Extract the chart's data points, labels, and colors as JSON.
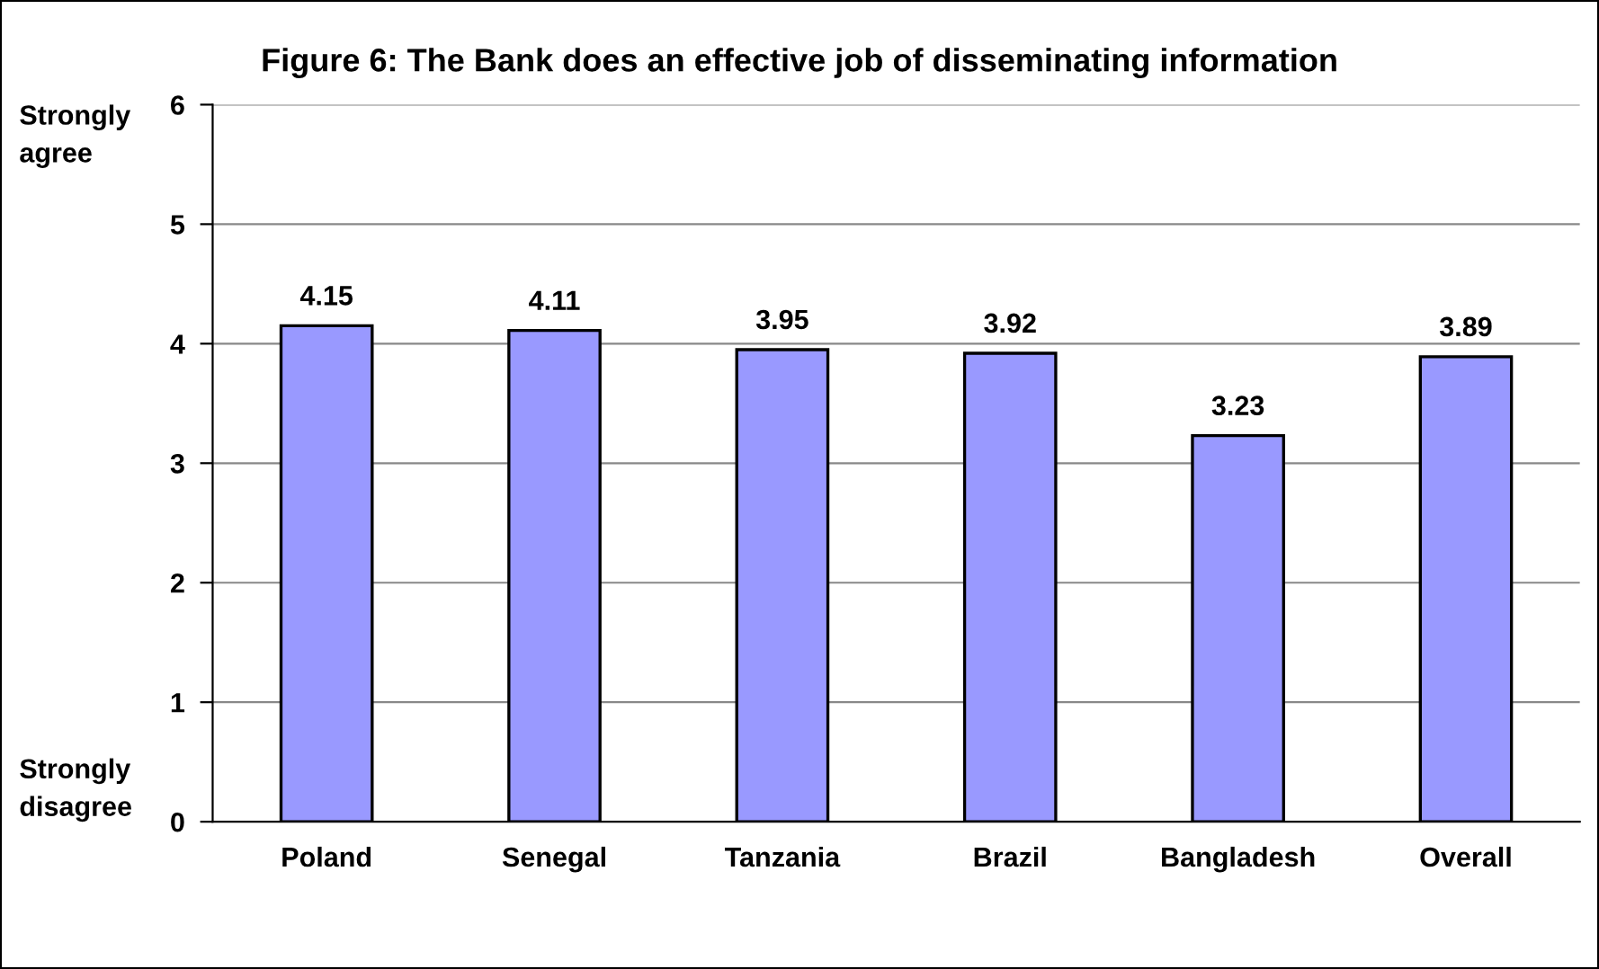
{
  "chart_data": {
    "type": "bar",
    "title": "Figure 6: The Bank does an effective job of disseminating information",
    "categories": [
      "Poland",
      "Senegal",
      "Tanzania",
      "Brazil",
      "Bangladesh",
      "Overall"
    ],
    "values": [
      4.15,
      4.11,
      3.95,
      3.92,
      3.23,
      3.89
    ],
    "color": "#9999ff",
    "ylim": [
      0,
      6
    ],
    "yticks": [
      0,
      1,
      2,
      3,
      4,
      5,
      6
    ],
    "grid": "y",
    "data_labels": true,
    "annotations": [
      "Strongly\nagree",
      "Strongly\ndisagree"
    ]
  }
}
